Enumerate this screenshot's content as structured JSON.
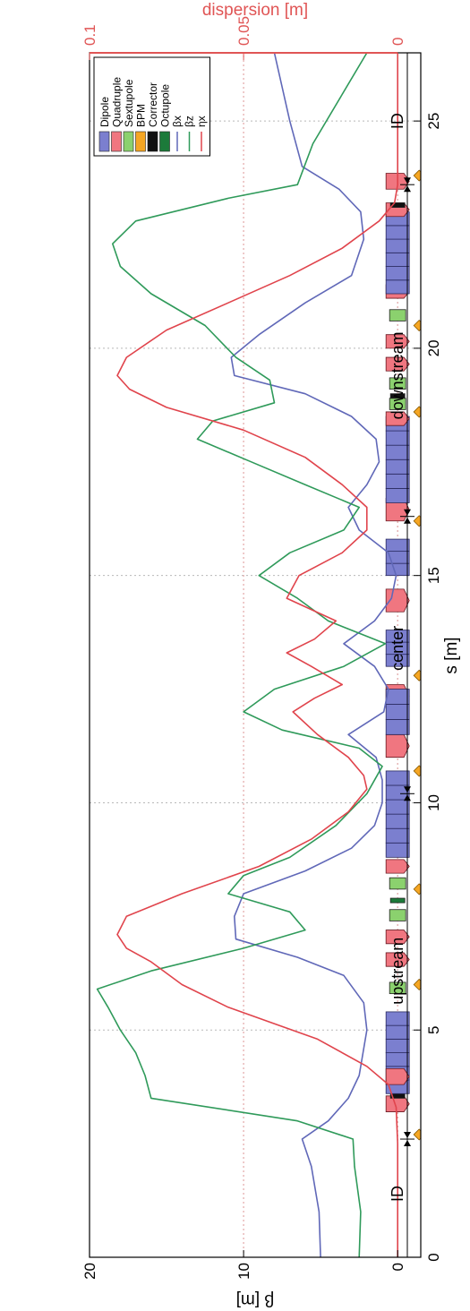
{
  "chart_data": {
    "type": "line",
    "xlabel": "s [m]",
    "ylabel": "β [m]",
    "ylabel_right": "dispersion [m]",
    "xlim": [
      0,
      26.5
    ],
    "ylim": [
      -1.5,
      20
    ],
    "ylim_right": [
      0,
      0.1
    ],
    "x_ticks": [
      0,
      5,
      10,
      15,
      20,
      25
    ],
    "y_ticks": [
      0,
      10,
      20
    ],
    "y_right_ticks": [
      "0",
      "0.05",
      "0.1"
    ],
    "grid": true,
    "legend_position": "top-right",
    "colors": {
      "beta_x": "#6068b8",
      "beta_z": "#2f9a5a",
      "eta_x": "#e0444c",
      "dipole": "#7b7fcf",
      "quadrupole": "#f07680",
      "sextupole": "#8bd16e",
      "bpm": "#f5a623",
      "corrector": "#111111",
      "octupole": "#1c7a3a",
      "right_axis": "#e05555"
    },
    "legend": [
      {
        "label": "Dipole",
        "color": "#7b7fcf",
        "kind": "box"
      },
      {
        "label": "Quadruple",
        "color": "#f07680",
        "kind": "box"
      },
      {
        "label": "Sextupole",
        "color": "#8bd16e",
        "kind": "box"
      },
      {
        "label": "BPM",
        "color": "#f5a623",
        "kind": "box"
      },
      {
        "label": "Corrector",
        "color": "#111111",
        "kind": "box"
      },
      {
        "label": "Octupole",
        "color": "#1c7a3a",
        "kind": "box"
      },
      {
        "label": "βx",
        "color": "#6068b8",
        "kind": "line"
      },
      {
        "label": "βz",
        "color": "#2f9a5a",
        "kind": "line"
      },
      {
        "label": "ηx",
        "color": "#e0444c",
        "kind": "line"
      }
    ],
    "series": [
      {
        "id": "beta_x",
        "axis": "left",
        "x": [
          0,
          1,
          2,
          2.6,
          3.0,
          3.5,
          4,
          5,
          5.6,
          6.2,
          6.6,
          7.0,
          7.5,
          8.0,
          8.5,
          9.0,
          9.5,
          10.0,
          10.5,
          11.0,
          11.5,
          12.0,
          12.5,
          13.0,
          13.5,
          14.0,
          14.5,
          15.0,
          15.5,
          16.0,
          16.5,
          17.0,
          17.5,
          18.0,
          18.5,
          19.0,
          19.4,
          19.8,
          20.3,
          21.0,
          21.6,
          22.4,
          23.0,
          23.5,
          24.0,
          25.0,
          26.5
        ],
        "y": [
          5.0,
          5.1,
          5.6,
          6.2,
          4.5,
          3.2,
          2.5,
          2.0,
          2.2,
          3.5,
          6.5,
          10.5,
          10.6,
          10.0,
          6.0,
          3.0,
          1.5,
          1.0,
          1.0,
          1.4,
          3.2,
          0.9,
          0.6,
          1.5,
          3.5,
          1.5,
          0.4,
          0.1,
          0.6,
          2.5,
          3.2,
          2.0,
          1.2,
          1.4,
          3.0,
          6.0,
          10.6,
          10.8,
          9.0,
          6.0,
          3.0,
          2.2,
          2.4,
          3.8,
          6.2,
          7.0,
          8.0
        ]
      },
      {
        "id": "beta_z",
        "axis": "left",
        "x": [
          0,
          1,
          2,
          2.6,
          3.0,
          3.5,
          4.0,
          4.5,
          5.0,
          5.5,
          5.9,
          6.3,
          6.8,
          7.2,
          7.6,
          8.0,
          8.4,
          8.8,
          9.5,
          10.2,
          10.8,
          11.2,
          11.6,
          12.0,
          12.5,
          13.0,
          13.5,
          14.0,
          14.5,
          15.0,
          15.5,
          16.0,
          16.5,
          17.0,
          17.5,
          18.0,
          18.4,
          18.8,
          19.3,
          19.8,
          20.5,
          21.2,
          21.8,
          22.3,
          22.8,
          23.3,
          23.6,
          24.5,
          26.5
        ],
        "y": [
          2.5,
          2.4,
          2.8,
          2.9,
          6.5,
          16.0,
          16.4,
          17.0,
          18.0,
          18.8,
          19.5,
          16.0,
          10.0,
          6.0,
          7.0,
          11.0,
          10.0,
          7.0,
          4.0,
          2.0,
          1.0,
          2.5,
          7.5,
          10.0,
          8.0,
          3.5,
          0.8,
          4.5,
          6.5,
          9.0,
          7.0,
          3.5,
          2.5,
          6.0,
          9.5,
          13.0,
          12.0,
          8.0,
          8.3,
          10.5,
          12.5,
          16.0,
          18.0,
          18.5,
          17.0,
          11.0,
          6.5,
          5.5,
          2.0
        ]
      },
      {
        "id": "eta_x",
        "axis": "right",
        "x": [
          0,
          2.5,
          3.3,
          3.8,
          4.2,
          4.8,
          5.5,
          6.0,
          6.5,
          6.8,
          7.1,
          7.5,
          8.0,
          8.6,
          9.2,
          9.8,
          10.3,
          10.6,
          11.0,
          11.5,
          12.0,
          12.3,
          12.6,
          13.0,
          13.3,
          13.6,
          14.0,
          14.5,
          15.0,
          15.5,
          16.0,
          16.5,
          17.0,
          17.6,
          18.2,
          18.7,
          19.1,
          19.4,
          19.8,
          20.4,
          21.0,
          21.6,
          22.2,
          22.8,
          23.2,
          23.6,
          26.5
        ],
        "y": [
          0,
          0,
          0.0005,
          0.003,
          0.01,
          0.026,
          0.055,
          0.07,
          0.08,
          0.088,
          0.091,
          0.088,
          0.07,
          0.045,
          0.028,
          0.016,
          0.01,
          0.011,
          0.016,
          0.026,
          0.034,
          0.027,
          0.018,
          0.028,
          0.036,
          0.027,
          0.02,
          0.036,
          0.032,
          0.018,
          0.01,
          0.01,
          0.018,
          0.03,
          0.05,
          0.075,
          0.087,
          0.091,
          0.088,
          0.075,
          0.055,
          0.035,
          0.018,
          0.006,
          0.001,
          0,
          0
        ]
      }
    ],
    "section_labels": [
      {
        "text": "ID",
        "x": 1.4
      },
      {
        "text": "upstream",
        "x": 6.3
      },
      {
        "text": "center",
        "x": 13.4
      },
      {
        "text": "downstream",
        "x": 19.4
      },
      {
        "text": "ID",
        "x": 25.0
      }
    ],
    "section_boundaries": [
      2.6,
      10.2,
      16.3,
      23.6
    ],
    "elements": [
      {
        "type": "quadrupole",
        "s": 3.2,
        "w": 0.35
      },
      {
        "type": "corrector",
        "s": 3.5,
        "w": 0.1
      },
      {
        "type": "dipole",
        "s": 3.6,
        "w": 1.8
      },
      {
        "type": "quadrupole",
        "s": 3.8,
        "w": 0.35
      },
      {
        "type": "sextupole",
        "s": 5.8,
        "w": 0.25
      },
      {
        "type": "quadrupole",
        "s": 6.4,
        "w": 0.3
      },
      {
        "type": "quadrupole",
        "s": 6.9,
        "w": 0.3
      },
      {
        "type": "sextupole",
        "s": 7.4,
        "w": 0.25
      },
      {
        "type": "octupole",
        "s": 7.8,
        "w": 0.1
      },
      {
        "type": "sextupole",
        "s": 8.1,
        "w": 0.25
      },
      {
        "type": "quadrupole",
        "s": 8.45,
        "w": 0.3
      },
      {
        "type": "dipole",
        "s": 8.8,
        "w": 1.9
      },
      {
        "type": "quadrupole",
        "s": 11.0,
        "w": 0.5
      },
      {
        "type": "quadrupole",
        "s": 12.1,
        "w": 0.5
      },
      {
        "type": "dipole",
        "s": 11.5,
        "w": 1.0
      },
      {
        "type": "dipole",
        "s": 13.0,
        "w": 0.8
      },
      {
        "type": "quadrupole",
        "s": 14.2,
        "w": 0.5
      },
      {
        "type": "dipole",
        "s": 15.0,
        "w": 0.8
      },
      {
        "type": "quadrupole",
        "s": 16.2,
        "w": 0.5
      },
      {
        "type": "dipole",
        "s": 16.6,
        "w": 1.9
      },
      {
        "type": "quadrupole",
        "s": 18.3,
        "w": 0.3
      },
      {
        "type": "sextupole",
        "s": 18.65,
        "w": 0.25
      },
      {
        "type": "corrector",
        "s": 18.9,
        "w": 0.1
      },
      {
        "type": "sextupole",
        "s": 19.1,
        "w": 0.25
      },
      {
        "type": "quadrupole",
        "s": 19.5,
        "w": 0.3
      },
      {
        "type": "quadrupole",
        "s": 20.0,
        "w": 0.3
      },
      {
        "type": "sextupole",
        "s": 20.6,
        "w": 0.25
      },
      {
        "type": "quadrupole",
        "s": 21.1,
        "w": 0.3
      },
      {
        "type": "dipole",
        "s": 21.2,
        "w": 1.8
      },
      {
        "type": "quadrupole",
        "s": 22.9,
        "w": 0.3
      },
      {
        "type": "corrector",
        "s": 23.1,
        "w": 0.1
      },
      {
        "type": "quadrupole",
        "s": 23.5,
        "w": 0.35
      }
    ],
    "bpms": [
      2.7,
      6.0,
      8.1,
      10.7,
      12.8,
      16.2,
      18.6,
      20.5,
      23.8
    ]
  }
}
